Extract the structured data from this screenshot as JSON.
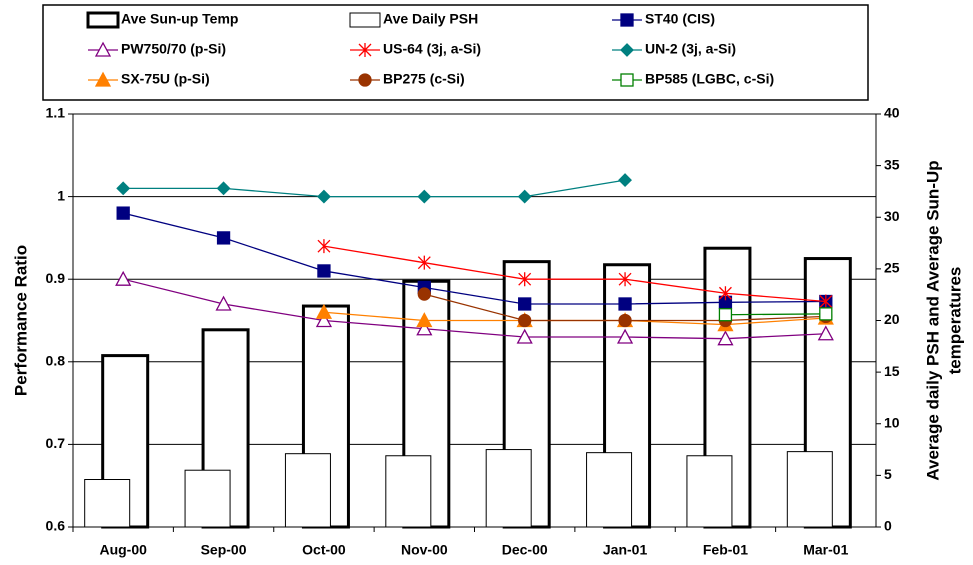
{
  "chart_data": {
    "type": "bar-line",
    "categories": [
      "Aug-00",
      "Sep-00",
      "Oct-00",
      "Nov-00",
      "Dec-00",
      "Jan-01",
      "Feb-01",
      "Mar-01"
    ],
    "y_label": "Performance Ratio",
    "y2_label": [
      "Average daily PSH and Average Sun-Up",
      "temperatures"
    ],
    "ylim": [
      0.6,
      1.1
    ],
    "yticks": [
      0.6,
      0.7,
      0.8,
      0.9,
      1,
      1.1
    ],
    "y2lim": [
      0,
      40
    ],
    "y2ticks": [
      0,
      5,
      10,
      15,
      20,
      25,
      30,
      35,
      40
    ],
    "grid": true,
    "series": [
      {
        "name": "Ave Sun-up Temp",
        "type": "bar",
        "axis": "y2",
        "color": "#000000",
        "values": [
          16.6,
          19.1,
          21.4,
          23.8,
          25.7,
          25.4,
          27.0,
          26.0
        ]
      },
      {
        "name": "Ave Daily PSH",
        "type": "bar",
        "axis": "y2",
        "color": "#000000",
        "values": [
          4.6,
          5.5,
          7.1,
          6.9,
          7.5,
          7.2,
          6.9,
          7.3
        ]
      },
      {
        "name": "ST40 (CIS)",
        "type": "line",
        "marker": "square",
        "color": "#000080",
        "values": [
          0.98,
          0.95,
          0.91,
          0.89,
          0.87,
          0.87,
          0.872,
          0.873
        ]
      },
      {
        "name": "PW750/70 (p-Si)",
        "type": "line",
        "marker": "triangle-open",
        "color": "#800080",
        "values": [
          0.9,
          0.87,
          0.85,
          0.84,
          0.83,
          0.83,
          0.828,
          0.834
        ]
      },
      {
        "name": "US-64 (3j, a-Si)",
        "type": "line",
        "marker": "star",
        "color": "#ff0000",
        "values": [
          null,
          null,
          0.94,
          0.92,
          0.9,
          0.9,
          0.883,
          0.873
        ]
      },
      {
        "name": "UN-2 (3j, a-Si)",
        "type": "line",
        "marker": "diamond",
        "color": "#008080",
        "values": [
          1.01,
          1.01,
          1.0,
          1.0,
          1.0,
          1.02,
          null,
          null
        ]
      },
      {
        "name": "SX-75U (p-Si)",
        "type": "line",
        "marker": "triangle",
        "color": "#ff8000",
        "values": [
          null,
          null,
          0.86,
          0.85,
          0.85,
          0.85,
          0.845,
          0.853
        ]
      },
      {
        "name": "BP275 (c-Si)",
        "type": "line",
        "marker": "circle",
        "color": "#993300",
        "values": [
          null,
          null,
          null,
          0.882,
          0.85,
          0.85,
          0.85,
          0.855
        ]
      },
      {
        "name": "BP585 (LGBC, c-Si)",
        "type": "line",
        "marker": "square-open",
        "color": "#008000",
        "values": [
          null,
          null,
          null,
          null,
          null,
          null,
          0.857,
          0.858
        ]
      }
    ]
  }
}
